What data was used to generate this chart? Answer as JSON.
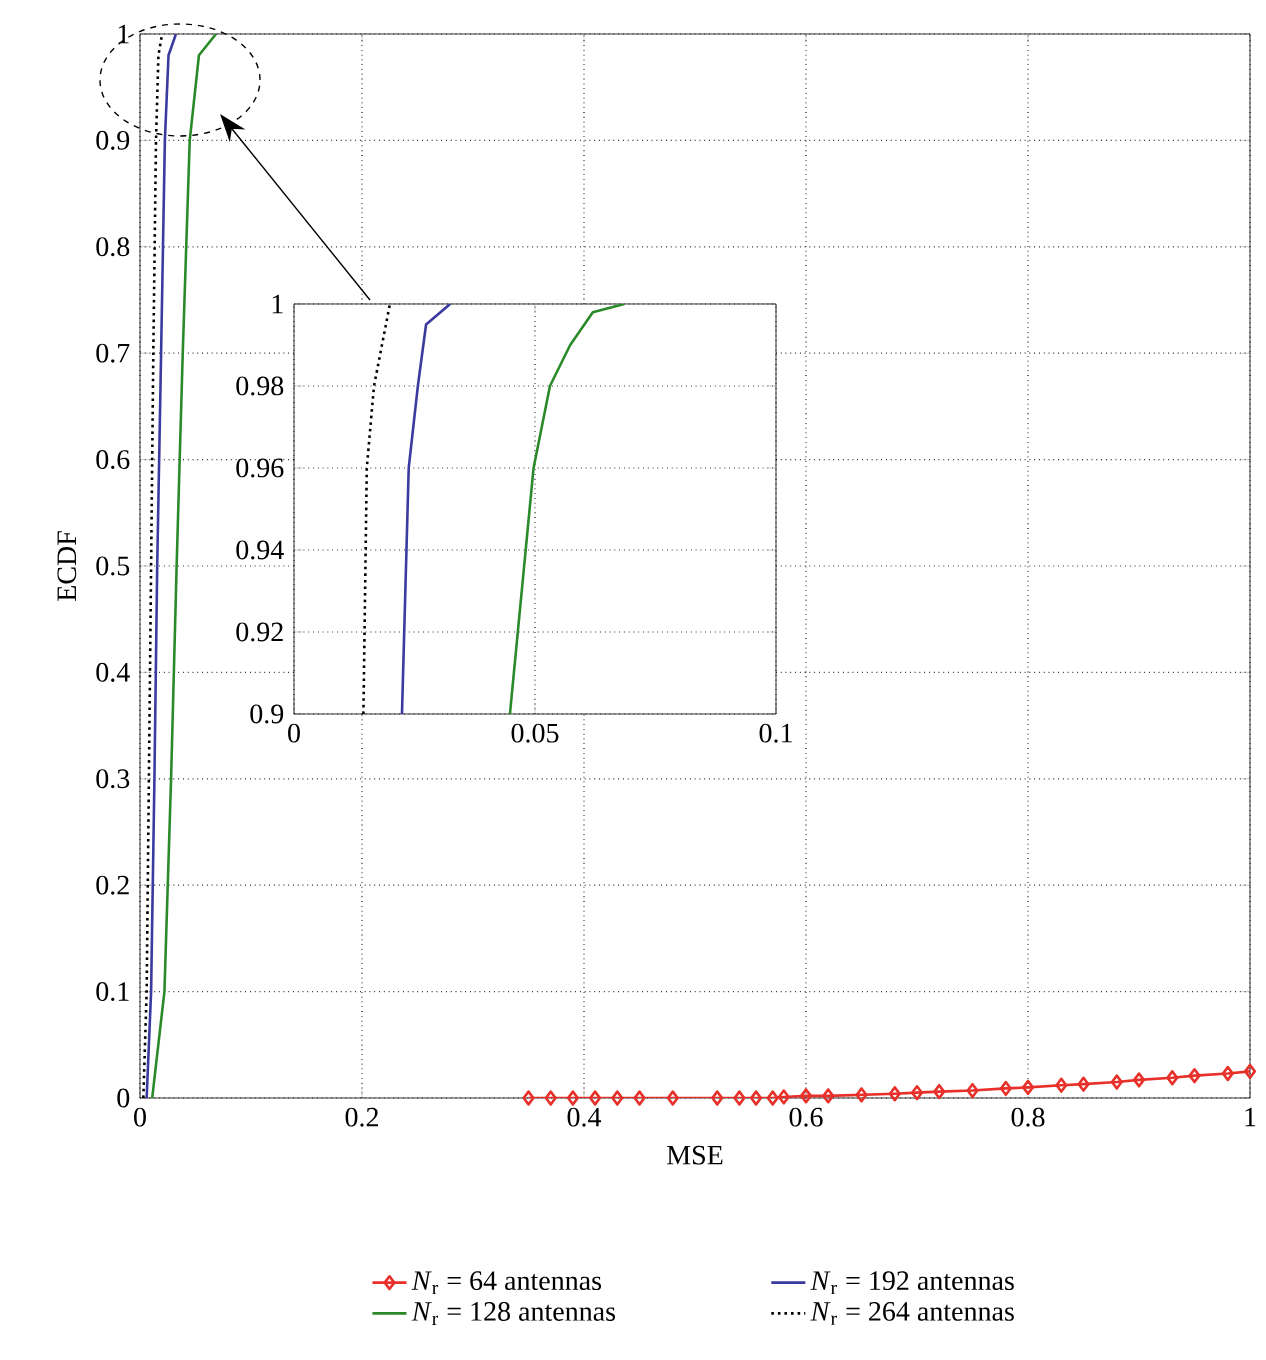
{
  "chart_data": [
    {
      "type": "line",
      "xlabel": "MSE",
      "ylabel": "ECDF",
      "xlim": [
        0,
        1
      ],
      "ylim": [
        0,
        1
      ],
      "xticks": [
        0,
        0.2,
        0.4,
        0.6,
        0.8,
        1
      ],
      "yticks": [
        0,
        0.1,
        0.2,
        0.3,
        0.4,
        0.5,
        0.6,
        0.7,
        0.8,
        0.9,
        1
      ],
      "grid": true,
      "legend": "bottom",
      "series": [
        {
          "name": "*N*$_{r}$ = 64 antennas",
          "color": "#e8302a",
          "marker": "diamond",
          "x": [
            0.35,
            0.37,
            0.39,
            0.41,
            0.43,
            0.45,
            0.48,
            0.52,
            0.54,
            0.555,
            0.57,
            0.58,
            0.6,
            0.62,
            0.65,
            0.68,
            0.7,
            0.72,
            0.75,
            0.78,
            0.8,
            0.83,
            0.85,
            0.88,
            0.9,
            0.93,
            0.95,
            0.98,
            1.0
          ],
          "values": [
            0,
            0,
            0,
            0,
            0,
            0,
            0,
            0,
            0,
            0,
            0,
            0.001,
            0.002,
            0.002,
            0.003,
            0.004,
            0.005,
            0.006,
            0.007,
            0.009,
            0.01,
            0.012,
            0.013,
            0.015,
            0.017,
            0.019,
            0.021,
            0.023,
            0.025
          ]
        },
        {
          "name": "*N*$_{r}$ = 128 antennas",
          "color": "#2a8a2a",
          "x": [
            0.011,
            0.022,
            0.028,
            0.033,
            0.0385,
            0.0448,
            0.0531,
            0.0685
          ],
          "values": [
            0,
            0.1,
            0.3,
            0.5,
            0.7,
            0.9,
            0.98,
            1
          ]
        },
        {
          "name": "*N*$_{r}$ = 192 antennas",
          "color": "#3a3aa0",
          "x": [
            0.006,
            0.01,
            0.013,
            0.0155,
            0.019,
            0.0224,
            0.0257,
            0.0324
          ],
          "values": [
            0,
            0.1,
            0.3,
            0.5,
            0.7,
            0.9,
            0.98,
            1
          ]
        },
        {
          "name": "*N*$_{r}$ = 264 antennas",
          "color": "#000000",
          "line_style": "dotted",
          "x": [
            0.003,
            0.006,
            0.008,
            0.01,
            0.012,
            0.0144,
            0.0166,
            0.0199
          ],
          "values": [
            0,
            0.1,
            0.3,
            0.5,
            0.7,
            0.9,
            0.98,
            1
          ]
        }
      ]
    },
    {
      "type": "line",
      "xlim": [
        0,
        0.1
      ],
      "ylim": [
        0.9,
        1
      ],
      "xticks": [
        0,
        0.05,
        0.1
      ],
      "yticks": [
        0.9,
        0.92,
        0.94,
        0.96,
        0.98,
        1
      ],
      "grid": true,
      "series": [
        {
          "color": "#2a8a2a",
          "x": [
            0.0448,
            0.0497,
            0.0531,
            0.0573,
            0.062,
            0.0685
          ],
          "values": [
            0.9,
            0.96,
            0.98,
            0.99,
            0.998,
            1
          ]
        },
        {
          "color": "#3a3aa0",
          "x": [
            0.0224,
            0.0238,
            0.0257,
            0.0274,
            0.0324
          ],
          "values": [
            0.9,
            0.96,
            0.98,
            0.995,
            1
          ]
        },
        {
          "color": "#000000",
          "line_style": "dotted",
          "x": [
            0.0144,
            0.0151,
            0.0166,
            0.0199
          ],
          "values": [
            0.9,
            0.96,
            0.98,
            1
          ]
        }
      ]
    }
  ]
}
